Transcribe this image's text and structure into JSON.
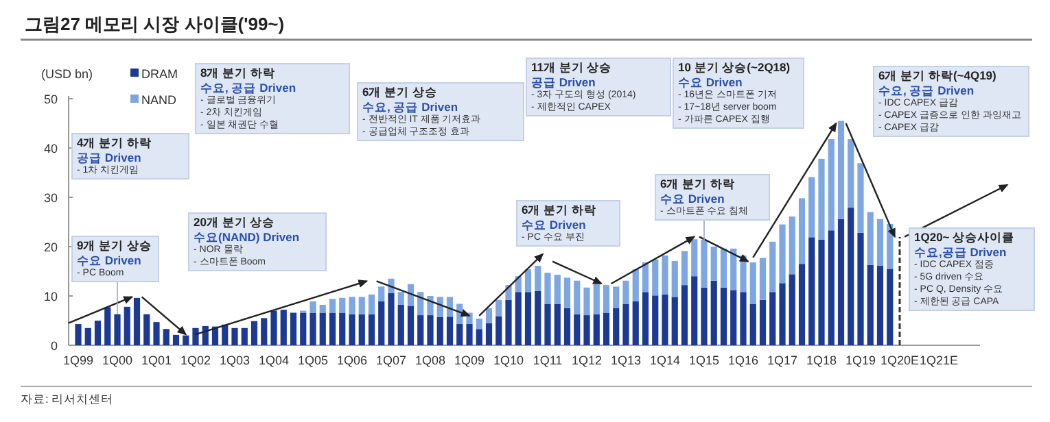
{
  "chart_data": {
    "type": "bar",
    "stacked": true,
    "title": "그림27 메모리 시장 사이클('99~)",
    "ylabel": "(USD bn)",
    "legend": "top left",
    "ylim": [
      0,
      50
    ],
    "yticks": [
      0,
      10,
      20,
      30,
      40,
      50
    ],
    "categories": [
      "1Q99",
      null,
      null,
      null,
      "1Q00",
      null,
      null,
      null,
      "1Q01",
      null,
      null,
      null,
      "1Q02",
      null,
      null,
      null,
      "1Q03",
      null,
      null,
      null,
      "1Q04",
      null,
      null,
      null,
      "1Q05",
      null,
      null,
      null,
      "1Q06",
      null,
      null,
      null,
      "1Q07",
      null,
      null,
      null,
      "1Q08",
      null,
      null,
      null,
      "1Q09",
      null,
      null,
      null,
      "1Q10",
      null,
      null,
      null,
      "1Q11",
      null,
      null,
      null,
      "1Q12",
      null,
      null,
      null,
      "1Q13",
      null,
      null,
      null,
      "1Q14",
      null,
      null,
      null,
      "1Q15",
      null,
      null,
      null,
      "1Q16",
      null,
      null,
      null,
      "1Q17",
      null,
      null,
      null,
      "1Q18",
      null,
      null,
      null,
      "1Q19",
      null,
      null,
      null,
      "1Q20E",
      null,
      null,
      null,
      "1Q21E",
      null,
      null,
      null
    ],
    "series": [
      {
        "name": "DRAM",
        "color": "#1c3a94",
        "values": [
          4.3,
          3.5,
          5.0,
          7.7,
          6.3,
          7.8,
          9.6,
          6.3,
          4.7,
          3.3,
          2.1,
          2.0,
          3.5,
          3.9,
          3.8,
          4.2,
          3.5,
          3.5,
          4.9,
          5.5,
          7.0,
          7.2,
          6.6,
          6.6,
          6.6,
          6.6,
          6.6,
          6.6,
          6.3,
          6.3,
          6.3,
          8.9,
          10.6,
          8.2,
          8.0,
          6.1,
          6.1,
          5.7,
          5.8,
          4.3,
          4.3,
          3.3,
          4.5,
          5.9,
          9.2,
          10.8,
          10.8,
          11.0,
          8.4,
          8.4,
          7.5,
          6.3,
          6.1,
          6.3,
          6.6,
          7.5,
          8.4,
          8.9,
          10.8,
          10.1,
          10.3,
          9.8,
          12.2,
          14.0,
          11.7,
          13.1,
          11.7,
          11.2,
          10.8,
          8.4,
          9.2,
          10.8,
          12.6,
          14.4,
          16.5,
          21.9,
          21.4,
          23.3,
          25.6,
          27.9,
          22.8,
          16.3,
          16.1,
          15.5,
          null,
          null,
          null,
          null,
          null,
          null,
          null,
          null
        ]
      },
      {
        "name": "NAND",
        "color": "#7ea6e3",
        "values": [
          0,
          0,
          0,
          0,
          0,
          0,
          0,
          0,
          0,
          0,
          0,
          0,
          0,
          0,
          0,
          0,
          0,
          0,
          0,
          0,
          0,
          0,
          0,
          0.4,
          2.3,
          1.6,
          2.8,
          3.0,
          3.5,
          3.5,
          4.0,
          3.0,
          2.9,
          2.6,
          4.4,
          4.7,
          3.9,
          4.1,
          4.0,
          4.1,
          2.3,
          2.1,
          3.0,
          3.3,
          3.0,
          3.2,
          4.6,
          5.1,
          6.3,
          5.9,
          6.2,
          6.8,
          5.6,
          6.1,
          5.6,
          4.4,
          4.7,
          6.5,
          6.0,
          7.3,
          7.9,
          7.3,
          6.9,
          7.5,
          9.7,
          6.9,
          7.9,
          8.4,
          7.4,
          8.4,
          8.5,
          10.2,
          11.9,
          11.7,
          13.3,
          12.2,
          16.4,
          18.5,
          19.9,
          13.9,
          14.1,
          10.7,
          9.5,
          9.1,
          null,
          null,
          null,
          null,
          null,
          null,
          null,
          null
        ]
      }
    ],
    "ref_lines": [
      {
        "axis": "x",
        "value": "1Q20E",
        "line_style": "dashed",
        "color": "#333333"
      }
    ],
    "annotations": [
      {
        "text": "9개 분기 상승\n수요 Driven\n- PC Boom",
        "x": "1Q00",
        "y": 6.3
      },
      "4개 분기 하락\n공급 Driven\n- 1차 치킨게임",
      "8개 분기 하락\n수요, 공급 Driven\n- 글로벌 금융위기\n- 2차 치킨게임\n- 일본 채권단 수혈",
      "20개 분기 상승\n수요(NAND) Driven\n- NOR 몰락\n- 스마트폰 Boom",
      "6개 분기 상승\n수요, 공급 Driven\n- 전반적인 IT 제품 기저효과\n- 공급업체 구조조정 효과",
      "11개 분기 상승\n공급 Driven\n- 3자 구도의 형성 (2014)\n- 제한적인 CAPEX",
      "6개 분기 하락\n수요 Driven\n- PC 수요 부진",
      "10 분기 상승(~2Q18)\n수요 Driven\n- 16년은 스마트폰 기저\n- 17~18년 server boom\n- 가파른 CAPEX 집행",
      {
        "text": "6개 분기 하락\n수요 Driven\n- 스마트폰 수요 침체",
        "x": "1Q15",
        "y": 21
      },
      "6개 분기 하락(~4Q19)\n수요, 공급 Driven\n- IDC CAPEX 급감\n- CAPEX 급증으로 인한 과잉재고\n- CAPEX 급감",
      "1Q20~ 상승사이클\n수요,공급 Driven\n- IDC CAPEX 점증\n- 5G driven 수요\n- PC Q, Density 수요\n- 제한된 공급 CAPA",
      "자료: 리서치센터"
    ]
  }
}
